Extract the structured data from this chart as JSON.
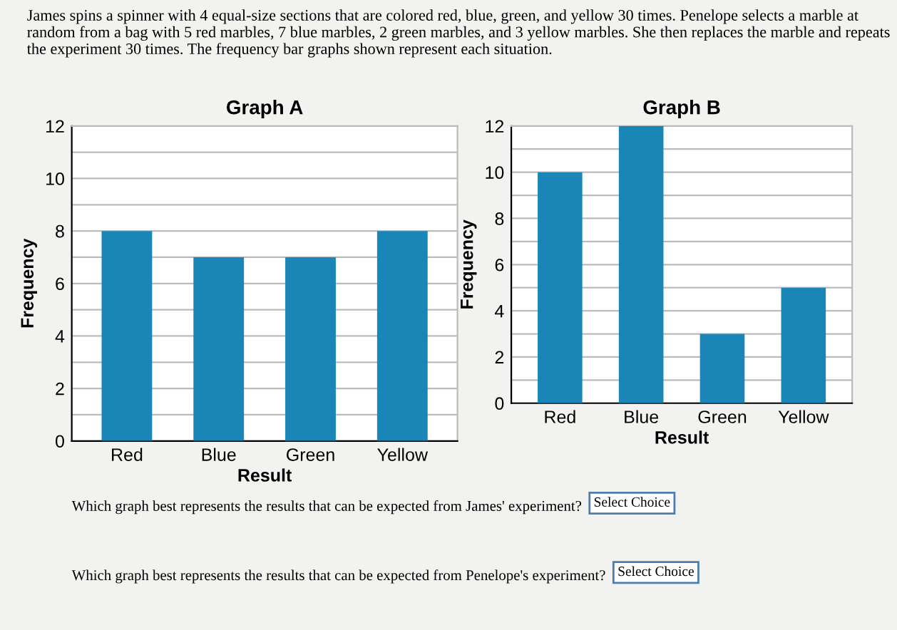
{
  "chart_data": [
    {
      "type": "bar",
      "title": "Graph A",
      "xlabel": "Result",
      "ylabel": "Frequency",
      "categories": [
        "Red",
        "Blue",
        "Green",
        "Yellow"
      ],
      "values": [
        8,
        7,
        7,
        8
      ],
      "color": "#1a86b8",
      "ylim": [
        0,
        12
      ],
      "yticks": [
        0,
        {
          "value": 1,
          "label": null
        },
        2,
        {
          "value": 3,
          "label": null
        },
        4,
        {
          "value": 5,
          "label": null
        },
        6,
        {
          "value": 7,
          "label": null
        },
        8,
        {
          "value": 9,
          "label": null
        },
        10,
        {
          "value": 11,
          "label": null
        },
        12
      ],
      "grid": "y",
      "legend": false,
      "annotations": [
        "James spins a spinner with 4 equal-size sections that are colored red, blue, green, and yellow 30 times. Penelope selects a marble at random from a bag with 5 red marbles, 7 blue marbles, 2 green marbles, and 3 yellow marbles. She then replaces the marble and repeats the experiment 30 times. The frequency bar graphs shown represent each situation."
      ]
    },
    {
      "type": "bar",
      "title": "Graph B",
      "xlabel": "Result",
      "ylabel": "Frequency",
      "categories": [
        "Red",
        "Blue",
        "Green",
        "Yellow"
      ],
      "values": [
        10,
        12,
        3,
        5
      ],
      "color": "#1a86b8",
      "ylim": [
        0,
        12
      ],
      "yticks": [
        0,
        {
          "value": 1,
          "label": null
        },
        2,
        {
          "value": 3,
          "label": null
        },
        4,
        {
          "value": 5,
          "label": null
        },
        6,
        {
          "value": 7,
          "label": null
        },
        8,
        {
          "value": 9,
          "label": null
        },
        10,
        {
          "value": 11,
          "label": null
        },
        12
      ],
      "grid": "y",
      "legend": false,
      "annotations": [
        "Which graph best represents the results that can be expected from James' experiment?",
        "Select Choice",
        "Which graph best represents the results that can be expected from Penelope's experiment?",
        "Select Choice"
      ]
    }
  ]
}
